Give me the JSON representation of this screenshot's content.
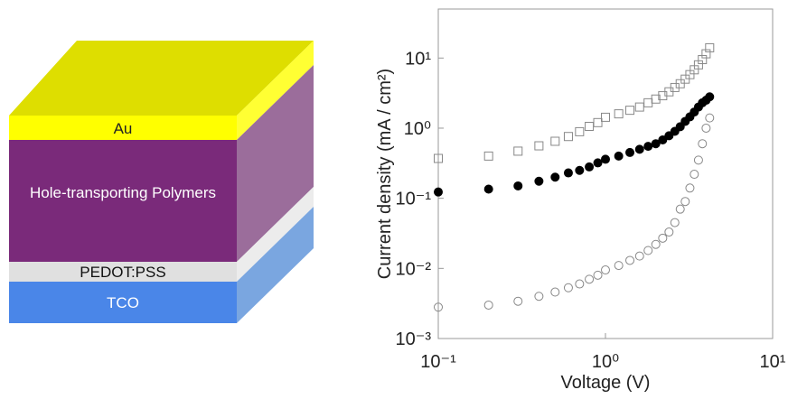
{
  "diagram": {
    "layers": [
      {
        "label": "Au"
      },
      {
        "label": "Hole-transporting Polymers"
      },
      {
        "label": "PEDOT:PSS"
      },
      {
        "label": "TCO"
      }
    ]
  },
  "chart_data": {
    "type": "scatter",
    "xlabel": "Voltage (V)",
    "ylabel": "Current density (mA / cm²)",
    "xscale": "log",
    "yscale": "log",
    "xlim": [
      0.1,
      10
    ],
    "ylim": [
      0.001,
      50
    ],
    "xticks": [
      {
        "value": 0.1,
        "label": "10⁻¹"
      },
      {
        "value": 1,
        "label": "10⁰"
      },
      {
        "value": 10,
        "label": "10¹"
      }
    ],
    "yticks": [
      {
        "value": 0.001,
        "label": "10⁻³"
      },
      {
        "value": 0.01,
        "label": "10⁻²"
      },
      {
        "value": 0.1,
        "label": "10⁻¹"
      },
      {
        "value": 1,
        "label": "10⁰"
      },
      {
        "value": 10,
        "label": "10¹"
      }
    ],
    "x": [
      0.1,
      0.2,
      0.3,
      0.4,
      0.5,
      0.6,
      0.7,
      0.8,
      0.9,
      1.0,
      1.2,
      1.4,
      1.6,
      1.8,
      2.0,
      2.2,
      2.4,
      2.6,
      2.8,
      3.0,
      3.2,
      3.4,
      3.6,
      3.8,
      4.0,
      4.2
    ],
    "series": [
      {
        "marker": "square-open",
        "color": "#888888",
        "values": [
          0.37,
          0.4,
          0.47,
          0.56,
          0.65,
          0.76,
          0.89,
          1.06,
          1.2,
          1.43,
          1.6,
          1.8,
          2.0,
          2.3,
          2.6,
          2.9,
          3.3,
          3.8,
          4.3,
          5.0,
          5.8,
          6.8,
          8.0,
          9.5,
          11.5,
          14
        ]
      },
      {
        "marker": "circle-filled",
        "color": "#000000",
        "values": [
          0.123,
          0.135,
          0.15,
          0.175,
          0.2,
          0.23,
          0.25,
          0.28,
          0.32,
          0.36,
          0.4,
          0.45,
          0.5,
          0.55,
          0.6,
          0.68,
          0.78,
          0.9,
          1.05,
          1.25,
          1.45,
          1.7,
          2.0,
          2.3,
          2.5,
          2.8
        ]
      },
      {
        "marker": "circle-open",
        "color": "#888888",
        "values": [
          0.0028,
          0.003,
          0.0034,
          0.004,
          0.0046,
          0.0053,
          0.006,
          0.007,
          0.008,
          0.0095,
          0.011,
          0.013,
          0.015,
          0.018,
          0.022,
          0.027,
          0.033,
          0.045,
          0.07,
          0.09,
          0.14,
          0.22,
          0.35,
          0.6,
          1.0,
          1.4
        ]
      }
    ]
  }
}
